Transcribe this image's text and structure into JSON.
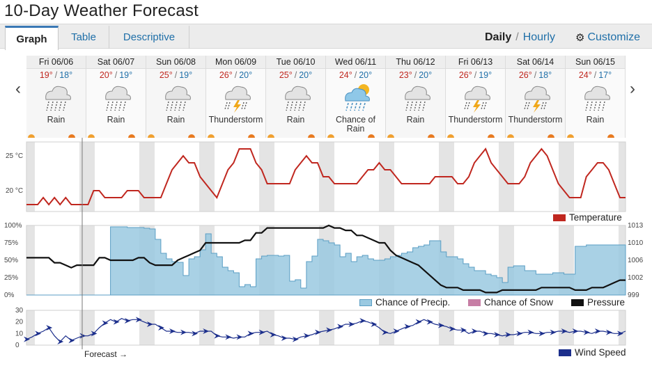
{
  "title": "10-Day Weather Forecast",
  "tabs": [
    {
      "label": "Graph",
      "active": true
    },
    {
      "label": "Table",
      "active": false
    },
    {
      "label": "Descriptive",
      "active": false
    }
  ],
  "mode": {
    "daily": "Daily",
    "separator": "/",
    "hourly": "Hourly",
    "customize": "Customize"
  },
  "days": [
    {
      "date": "Fri 06/06",
      "hi": "19°",
      "lo": "18°",
      "icon": "rain-icon",
      "cond": "Rain"
    },
    {
      "date": "Sat 06/07",
      "hi": "20°",
      "lo": "19°",
      "icon": "rain-icon",
      "cond": "Rain"
    },
    {
      "date": "Sun 06/08",
      "hi": "25°",
      "lo": "19°",
      "icon": "rain-icon",
      "cond": "Rain"
    },
    {
      "date": "Mon 06/09",
      "hi": "26°",
      "lo": "20°",
      "icon": "thunderstorm-icon",
      "cond": "Thunderstorm"
    },
    {
      "date": "Tue 06/10",
      "hi": "25°",
      "lo": "20°",
      "icon": "rain-icon",
      "cond": "Rain"
    },
    {
      "date": "Wed 06/11",
      "hi": "24°",
      "lo": "20°",
      "icon": "chance-of-rain-icon",
      "cond": "Chance of Rain"
    },
    {
      "date": "Thu 06/12",
      "hi": "23°",
      "lo": "20°",
      "icon": "rain-icon",
      "cond": "Rain"
    },
    {
      "date": "Fri 06/13",
      "hi": "26°",
      "lo": "19°",
      "icon": "thunderstorm-icon",
      "cond": "Thunderstorm"
    },
    {
      "date": "Sat 06/14",
      "hi": "26°",
      "lo": "18°",
      "icon": "thunderstorm-icon",
      "cond": "Thunderstorm"
    },
    {
      "date": "Sun 06/15",
      "hi": "24°",
      "lo": "17°",
      "icon": "rain-icon",
      "cond": "Rain"
    }
  ],
  "legend": {
    "temperature": "Temperature",
    "precip": "Chance of Precip.",
    "snow": "Chance of Snow",
    "pressure": "Pressure",
    "wind": "Wind Speed"
  },
  "forecast_label": "Forecast →",
  "colors": {
    "temperature": "#c0271f",
    "precip_fill": "#9ac9e1",
    "precip_line": "#5a9ec4",
    "snow": "#c77ea5",
    "pressure": "#111111",
    "wind": "#1c2f8c",
    "night_band": "#e4e4e4"
  },
  "chart_data": [
    {
      "type": "line",
      "name": "temperature",
      "y_ticks": [
        "25 °C",
        "20 °C"
      ],
      "ylim": [
        17,
        27
      ],
      "x_days": 10,
      "series": [
        {
          "name": "Temperature",
          "values": [
            18,
            18,
            18,
            19,
            18,
            19,
            18,
            19,
            18,
            18,
            18,
            18,
            20,
            20,
            19,
            19,
            19,
            19,
            20,
            20,
            20,
            19,
            19,
            19,
            19,
            21,
            23,
            24,
            25,
            24,
            24,
            22,
            21,
            20,
            19,
            21,
            23,
            24,
            26,
            26,
            26,
            24,
            23,
            21,
            21,
            21,
            21,
            21,
            23,
            24,
            25,
            24,
            24,
            22,
            22,
            21,
            21,
            21,
            21,
            21,
            22,
            23,
            23,
            24,
            23,
            23,
            22,
            21,
            21,
            21,
            21,
            21,
            21,
            22,
            22,
            22,
            22,
            21,
            21,
            22,
            24,
            25,
            26,
            24,
            23,
            22,
            21,
            21,
            21,
            22,
            24,
            25,
            26,
            25,
            23,
            21,
            20,
            19,
            19,
            19,
            22,
            23,
            24,
            24,
            23,
            21,
            19,
            19
          ]
        }
      ]
    },
    {
      "type": "area",
      "name": "precipitation-pressure",
      "y_ticks_left": [
        "100%",
        "75%",
        "50%",
        "25%",
        "0%"
      ],
      "y_ticks_right": [
        "1013",
        "1010",
        "1006",
        "1002",
        "999"
      ],
      "ylim_left": [
        0,
        100
      ],
      "ylim_right": [
        999,
        1013
      ],
      "series": [
        {
          "name": "Chance of Precip.",
          "values": [
            0,
            0,
            0,
            0,
            0,
            0,
            0,
            0,
            0,
            0,
            0,
            0,
            0,
            0,
            0,
            98,
            98,
            98,
            97,
            97,
            97,
            96,
            95,
            80,
            60,
            52,
            48,
            47,
            28,
            52,
            55,
            65,
            88,
            60,
            55,
            40,
            35,
            32,
            12,
            15,
            12,
            52,
            56,
            57,
            57,
            56,
            57,
            20,
            22,
            10,
            48,
            56,
            80,
            78,
            75,
            72,
            55,
            60,
            48,
            55,
            57,
            52,
            50,
            50,
            52,
            55,
            57,
            60,
            62,
            68,
            70,
            72,
            78,
            78,
            62,
            55,
            55,
            52,
            45,
            40,
            35,
            35,
            30,
            28,
            25,
            18,
            40,
            42,
            42,
            35,
            35,
            30,
            30,
            30,
            32,
            32,
            30,
            30,
            70,
            70,
            72,
            72,
            72,
            72,
            72,
            72,
            72,
            72
          ]
        },
        {
          "name": "Chance of Snow",
          "values": [
            0,
            0,
            0,
            0,
            0,
            0,
            0,
            0,
            0,
            0,
            0,
            0,
            0,
            0,
            0,
            0,
            0,
            0,
            0,
            0,
            0,
            0,
            0,
            0,
            0,
            0,
            0,
            0,
            0,
            0,
            0,
            0,
            0,
            0,
            0,
            0,
            0,
            0,
            0,
            0,
            0,
            0,
            0,
            0,
            0,
            0,
            0,
            0,
            0,
            0,
            0,
            0,
            0,
            0,
            0,
            0,
            0,
            0,
            0,
            0,
            0,
            0,
            0,
            0,
            0,
            0,
            0,
            0,
            0,
            0,
            0,
            0,
            0,
            0,
            0,
            0,
            0,
            0,
            0,
            0,
            0,
            0,
            0,
            0,
            0,
            0,
            0,
            0,
            0,
            0,
            0,
            0,
            0,
            0,
            0,
            0,
            0,
            0,
            0,
            0,
            0,
            0,
            0,
            0,
            0,
            0,
            0,
            0
          ]
        },
        {
          "name": "Pressure",
          "values": [
            1006.5,
            1006.5,
            1006.5,
            1006.5,
            1006.5,
            1005.5,
            1005.5,
            1005,
            1004.5,
            1005,
            1005,
            1005,
            1005,
            1006.5,
            1006.5,
            1006,
            1006,
            1006,
            1006,
            1006,
            1006.5,
            1006.5,
            1005.5,
            1005,
            1005,
            1005,
            1005,
            1006,
            1006.5,
            1007,
            1007.5,
            1008,
            1009.5,
            1009.5,
            1009.5,
            1009.5,
            1009.5,
            1009.5,
            1009.5,
            1010,
            1010,
            1011.5,
            1011.5,
            1012.5,
            1012.5,
            1012.5,
            1012.5,
            1012.5,
            1012.5,
            1012.5,
            1012.5,
            1012.5,
            1012.5,
            1012.5,
            1013,
            1012.5,
            1012.5,
            1012,
            1012,
            1011,
            1011,
            1010.5,
            1010,
            1009.5,
            1009.5,
            1008,
            1007,
            1006.5,
            1006,
            1005.5,
            1005,
            1004,
            1003,
            1002,
            1001,
            1000.5,
            1000.5,
            1000.5,
            1000,
            1000,
            1000,
            1000,
            999.5,
            999.5,
            999.5,
            1000,
            1000,
            1000,
            1000,
            1000,
            1000,
            1000,
            1000.5,
            1000.5,
            1000.5,
            1000.5,
            1000.5,
            1000.5,
            1000,
            1000,
            1000,
            1000.5,
            1000.5,
            1000.5,
            1001,
            1001.5,
            1002,
            1002
          ]
        }
      ]
    },
    {
      "type": "line",
      "name": "wind",
      "y_ticks": [
        "30",
        "20",
        "10",
        "0"
      ],
      "ylim": [
        0,
        30
      ],
      "series": [
        {
          "name": "Wind Speed",
          "values": [
            5,
            7,
            10,
            12,
            15,
            8,
            3,
            8,
            4,
            6,
            8,
            8,
            10,
            15,
            19,
            22,
            20,
            23,
            21,
            22,
            22,
            20,
            18,
            18,
            15,
            12,
            12,
            11,
            11,
            11,
            10,
            12,
            12,
            12,
            8,
            7,
            7,
            6,
            7,
            7,
            10,
            11,
            11,
            12,
            9,
            8,
            6,
            6,
            5,
            7,
            8,
            9,
            11,
            12,
            13,
            14,
            16,
            18,
            18,
            19,
            21,
            20,
            18,
            15,
            11,
            10,
            12,
            14,
            16,
            17,
            20,
            22,
            20,
            18,
            17,
            16,
            14,
            13,
            13,
            10,
            12,
            12,
            10,
            10,
            9,
            8,
            9,
            9,
            10,
            11,
            11,
            10,
            10,
            11,
            11,
            12,
            12,
            11,
            12,
            12,
            11,
            10,
            12,
            12,
            11,
            10,
            10,
            12
          ]
        }
      ]
    }
  ]
}
